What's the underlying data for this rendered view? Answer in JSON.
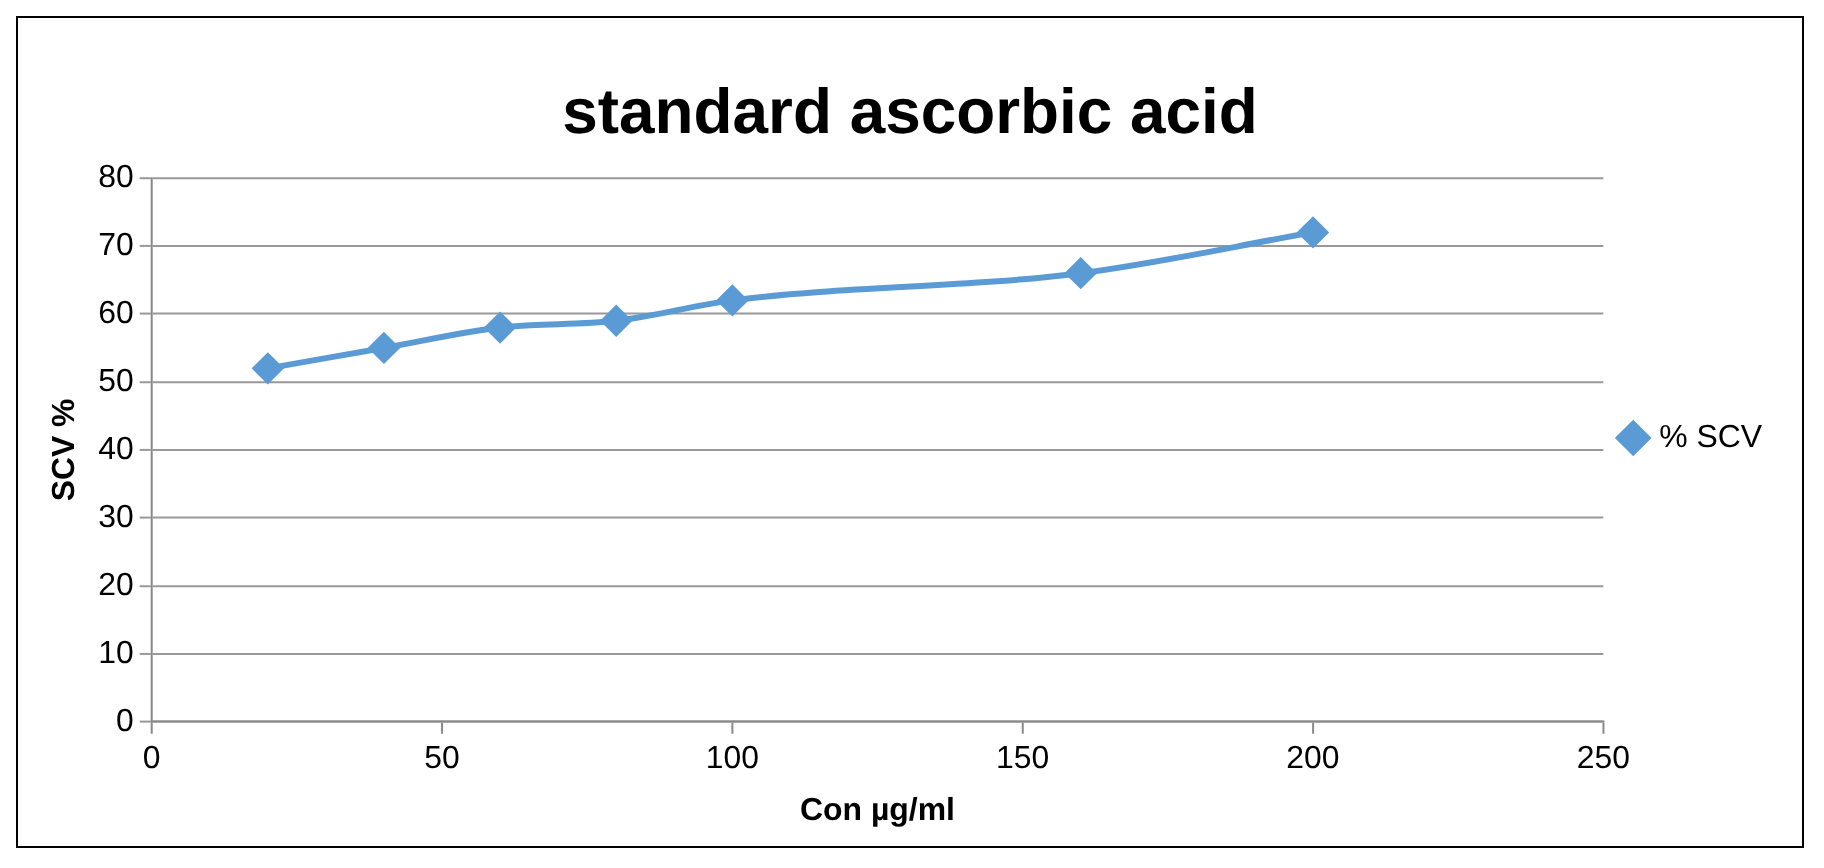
{
  "chart_data": {
    "type": "line",
    "title": "standard ascorbic acid",
    "xlabel": "Con µg/ml",
    "ylabel": "SCV %",
    "x": [
      20,
      40,
      60,
      80,
      100,
      160,
      200
    ],
    "series": [
      {
        "name": "% SCV",
        "color": "#5b9bd5",
        "values": [
          52,
          55,
          58,
          59,
          62,
          66,
          72
        ]
      }
    ],
    "xlim": [
      0,
      250
    ],
    "xticks": [
      0,
      50,
      100,
      150,
      200,
      250
    ],
    "ylim": [
      0,
      80
    ],
    "yticks": [
      0,
      10,
      20,
      30,
      40,
      50,
      60,
      70,
      80
    ],
    "grid": "y",
    "legend": "right",
    "marker": "diamond",
    "line_style": "solid"
  }
}
